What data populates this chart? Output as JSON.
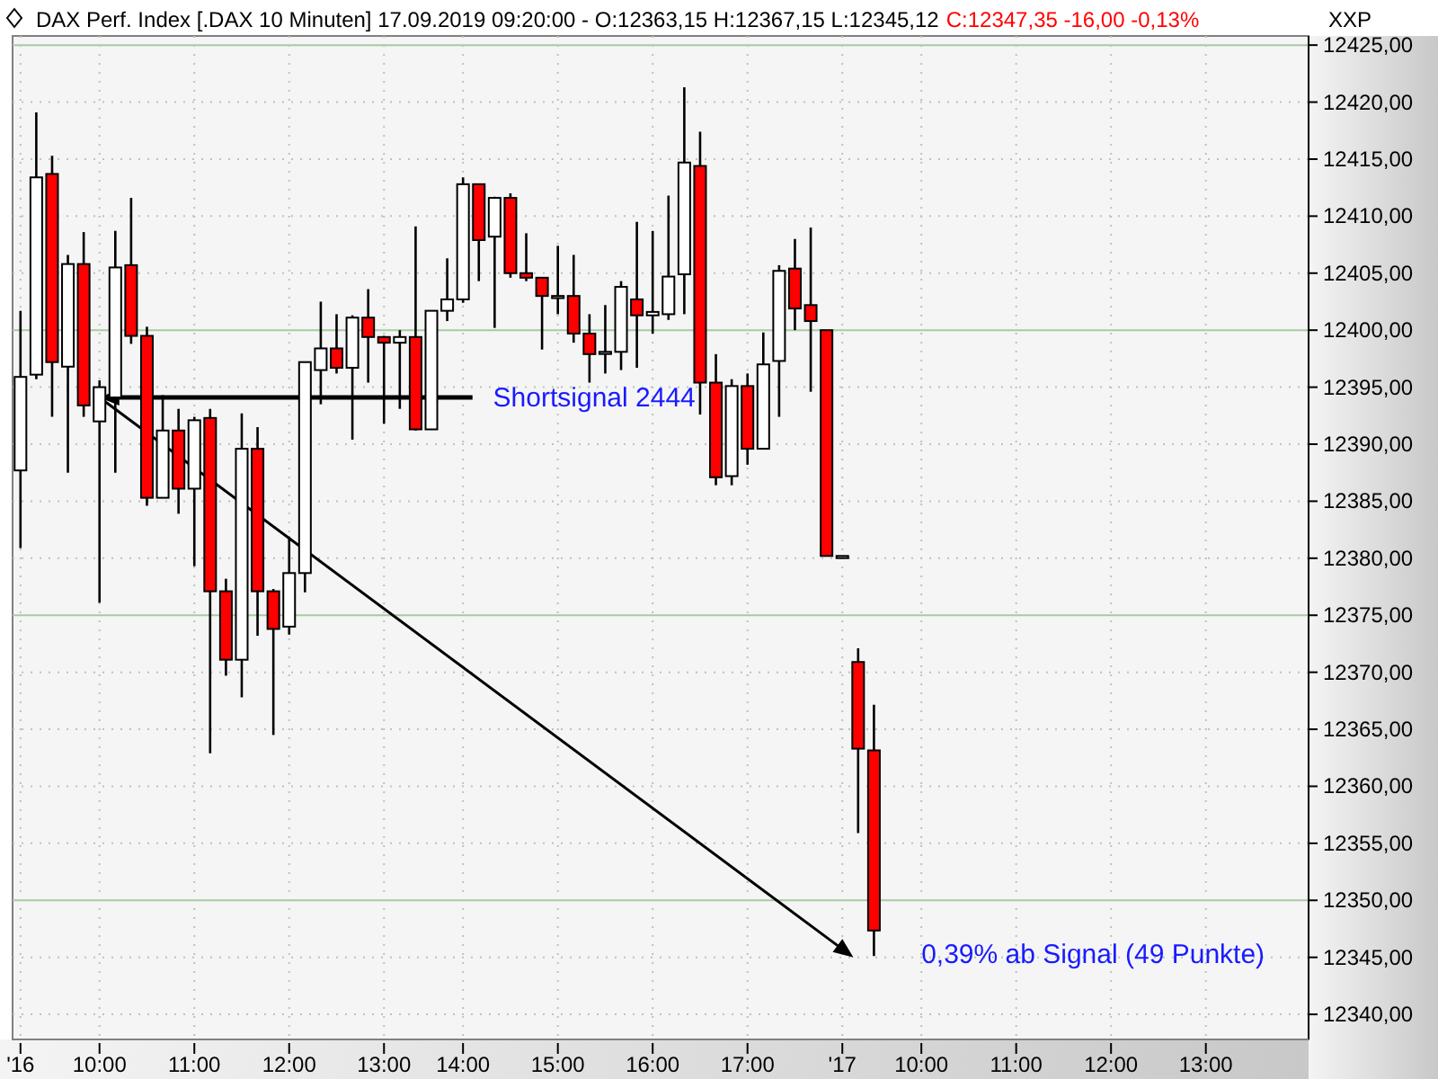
{
  "chart_data": {
    "type": "candlestick",
    "title": "DAX Perf. Index [.DAX  10 Minuten] 17.09.2019 09:20:00 - O:12363,15 H:12367,15 L:12345,12",
    "subtitle": "C:12347,35 -16,00 -0,13%",
    "ylabel": "XXP",
    "annotations": [
      {
        "text": "Shortsignal 2444",
        "x": "10:00",
        "y": 12394.1
      },
      "0,39% ab Signal (49 Punkte)"
    ],
    "categories": [
      "'16",
      null,
      null,
      null,
      null,
      "10:00",
      null,
      null,
      null,
      null,
      null,
      "11:00",
      null,
      null,
      null,
      null,
      null,
      "12:00",
      null,
      null,
      null,
      null,
      null,
      "13:00",
      null,
      null,
      null,
      null,
      "14:00",
      null,
      null,
      null,
      null,
      null,
      "15:00",
      null,
      null,
      null,
      null,
      null,
      "16:00",
      null,
      null,
      null,
      null,
      null,
      "17:00",
      null,
      null,
      null,
      null,
      null,
      "'17",
      null,
      null,
      null,
      null,
      "10:00",
      null,
      null,
      null,
      null,
      null,
      "11:00",
      null,
      null,
      null,
      null,
      null,
      "12:00",
      null,
      null,
      null,
      null,
      null,
      "13:00",
      null,
      null,
      null,
      null,
      null,
      null
    ],
    "ohlc": [
      [
        12387.7,
        12401.7,
        12380.9,
        12395.9
      ],
      [
        12396.1,
        12419.1,
        12395.7,
        12413.4
      ],
      [
        12413.7,
        12415.3,
        12392.4,
        12397.2
      ],
      [
        12396.8,
        12406.6,
        12387.5,
        12405.8
      ],
      [
        12405.8,
        12408.6,
        12392.4,
        12393.4
      ],
      [
        12392.0,
        12395.6,
        12376.1,
        12395.0
      ],
      [
        12394.1,
        12408.7,
        12387.5,
        12405.5
      ],
      [
        12405.7,
        12411.6,
        12398.8,
        12399.5
      ],
      [
        12399.5,
        12400.3,
        12384.6,
        12385.3
      ],
      [
        12385.3,
        12394.3,
        12385.3,
        12391.2
      ],
      [
        12391.2,
        12393.1,
        12383.9,
        12386.1
      ],
      [
        12386.1,
        12392.4,
        12379.3,
        12392.1
      ],
      [
        12392.3,
        12393.1,
        12362.9,
        12377.1
      ],
      [
        12377.1,
        12378.2,
        12369.7,
        12371.1
      ],
      [
        12371.1,
        12392.7,
        12367.8,
        12389.6
      ],
      [
        12389.6,
        12391.5,
        12373.2,
        12377.1
      ],
      [
        12377.1,
        12377.3,
        12364.5,
        12373.8
      ],
      [
        12374.0,
        12381.9,
        12373.3,
        12378.7
      ],
      [
        12378.7,
        12397.2,
        12377.0,
        12397.2
      ],
      [
        12396.5,
        12402.5,
        12393.5,
        12398.4
      ],
      [
        12398.4,
        12401.4,
        12396.2,
        12396.7
      ],
      [
        12396.7,
        12401.3,
        12390.4,
        12401.1
      ],
      [
        12401.1,
        12403.6,
        12395.4,
        12399.4
      ],
      [
        12399.4,
        12399.5,
        12391.8,
        12398.9
      ],
      [
        12398.9,
        12400.0,
        12393.1,
        12399.4
      ],
      [
        12399.4,
        12409.1,
        12391.2,
        12391.3
      ],
      [
        12391.3,
        12401.7,
        12391.3,
        12401.7
      ],
      [
        12401.7,
        12406.3,
        12400.8,
        12402.7
      ],
      [
        12402.7,
        12413.4,
        12402.4,
        12412.8
      ],
      [
        12412.8,
        12412.8,
        12404.3,
        12407.9
      ],
      [
        12408.2,
        12411.7,
        12400.2,
        12411.6
      ],
      [
        12411.6,
        12412.0,
        12404.6,
        12405.0
      ],
      [
        12405.0,
        12408.5,
        12404.3,
        12404.6
      ],
      [
        12404.6,
        12404.6,
        12398.3,
        12403.0
      ],
      [
        12403.0,
        12407.4,
        12401.4,
        12403.0
      ],
      [
        12403.0,
        12406.6,
        12398.9,
        12399.7
      ],
      [
        12399.7,
        12401.4,
        12395.4,
        12397.9
      ],
      [
        12398.1,
        12402.2,
        12396.2,
        12398.1
      ],
      [
        12398.1,
        12404.3,
        12396.5,
        12403.8
      ],
      [
        12402.7,
        12409.5,
        12396.7,
        12401.3
      ],
      [
        12401.3,
        12408.7,
        12399.7,
        12401.6
      ],
      [
        12401.4,
        12411.8,
        12400.9,
        12404.7
      ],
      [
        12404.9,
        12421.3,
        12401.4,
        12414.7
      ],
      [
        12414.4,
        12417.4,
        12392.6,
        12395.4
      ],
      [
        12395.4,
        12397.9,
        12386.4,
        12387.1
      ],
      [
        12387.2,
        12395.7,
        12386.4,
        12395.1
      ],
      [
        12395.1,
        12396.2,
        12388.2,
        12389.6
      ],
      [
        12389.6,
        12399.8,
        12389.6,
        12397.0
      ],
      [
        12397.3,
        12405.7,
        12392.4,
        12405.2
      ],
      [
        12405.4,
        12408.0,
        12400.0,
        12401.9
      ],
      [
        12402.2,
        12409.0,
        12394.6,
        12400.8
      ],
      [
        12400.0,
        12400.0,
        12380.2,
        12380.2
      ],
      [
        12380.2,
        12380.2,
        12380.2,
        12380.2
      ],
      [
        12370.9,
        12372.1,
        12355.9,
        12363.3
      ],
      [
        12363.15,
        12367.15,
        12345.12,
        12347.35
      ],
      null,
      null,
      null,
      null,
      null,
      null,
      null,
      null,
      null,
      null,
      null,
      null,
      null,
      null,
      null,
      null,
      null,
      null,
      null,
      null,
      null,
      null,
      null,
      null,
      null,
      null,
      null
    ],
    "ylim": [
      12337.8,
      12425.8
    ],
    "yticks": [
      {
        "value": 12340,
        "label": "12340,00"
      },
      {
        "value": 12345,
        "label": "12345,00"
      },
      {
        "value": 12350,
        "label": "12350,00"
      },
      {
        "value": 12355,
        "label": "12355,00"
      },
      {
        "value": 12360,
        "label": "12360,00"
      },
      {
        "value": 12365,
        "label": "12365,00"
      },
      {
        "value": 12370,
        "label": "12370,00"
      },
      {
        "value": 12375,
        "label": "12375,00"
      },
      {
        "value": 12380,
        "label": "12380,00"
      },
      {
        "value": 12385,
        "label": "12385,00"
      },
      {
        "value": 12390,
        "label": "12390,00"
      },
      {
        "value": 12395,
        "label": "12395,00"
      },
      {
        "value": 12400,
        "label": "12400,00"
      },
      {
        "value": 12405,
        "label": "12405,00"
      },
      {
        "value": 12410,
        "label": "12410,00"
      },
      {
        "value": 12415,
        "label": "12415,00"
      },
      {
        "value": 12420,
        "label": "12420,00"
      },
      {
        "value": 12425,
        "label": "12425,00"
      }
    ],
    "grid": true
  }
}
